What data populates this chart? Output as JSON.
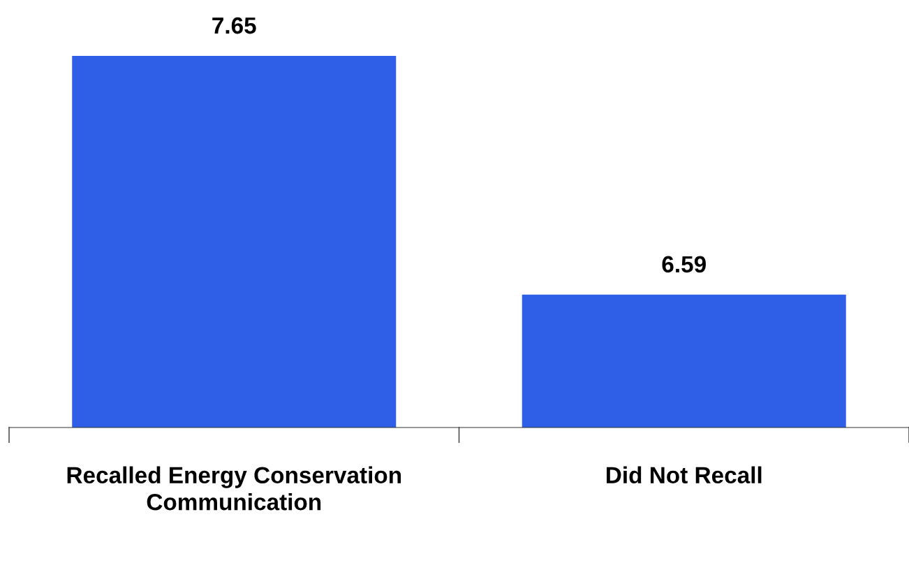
{
  "chart_data": {
    "type": "bar",
    "categories": [
      "Recalled Energy Conservation Communication",
      "Did Not Recall"
    ],
    "values": [
      7.65,
      6.59
    ],
    "color": "#2f5fe6",
    "ylim": [
      6,
      7.65
    ],
    "data_labels": true,
    "grid": false,
    "legend": false
  }
}
